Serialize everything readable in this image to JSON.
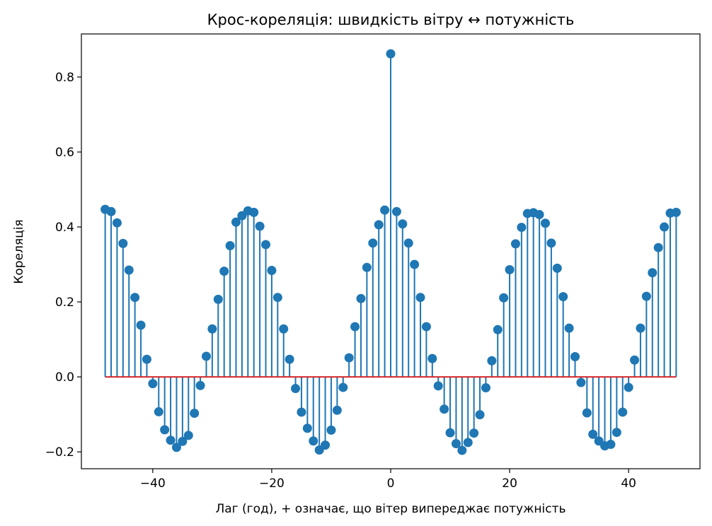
{
  "chart_data": {
    "type": "stem",
    "title": "Крос-кореляція: швидкість вітру ↔ потужність",
    "xlabel": "Лаг (год), + означає, що вітер випереджає потужність",
    "ylabel": "Кореляція",
    "xlim": [
      -52,
      52
    ],
    "ylim": [
      -0.245,
      0.915
    ],
    "xticks": [
      -40,
      -20,
      0,
      20,
      40
    ],
    "xtick_labels": [
      "−40",
      "−20",
      "0",
      "20",
      "40"
    ],
    "yticks": [
      -0.2,
      0.0,
      0.2,
      0.4,
      0.6,
      0.8
    ],
    "ytick_labels": [
      "−0.2",
      "0.0",
      "0.2",
      "0.4",
      "0.6",
      "0.8"
    ],
    "grid": false,
    "baseline": 0.0,
    "colors": {
      "stem": "#1f77b4",
      "marker": "#1f77b4",
      "baseline": "#d62728"
    },
    "x": [
      -48,
      -47,
      -46,
      -45,
      -44,
      -43,
      -42,
      -41,
      -40,
      -39,
      -38,
      -37,
      -36,
      -35,
      -34,
      -33,
      -32,
      -31,
      -30,
      -29,
      -28,
      -27,
      -26,
      -25,
      -24,
      -23,
      -22,
      -21,
      -20,
      -19,
      -18,
      -17,
      -16,
      -15,
      -14,
      -13,
      -12,
      -11,
      -10,
      -9,
      -8,
      -7,
      -6,
      -5,
      -4,
      -3,
      -2,
      -1,
      0,
      1,
      2,
      3,
      4,
      5,
      6,
      7,
      8,
      9,
      10,
      11,
      12,
      13,
      14,
      15,
      16,
      17,
      18,
      19,
      20,
      21,
      22,
      23,
      24,
      25,
      26,
      27,
      28,
      29,
      30,
      31,
      32,
      33,
      34,
      35,
      36,
      37,
      38,
      39,
      40,
      41,
      42,
      43,
      44,
      45,
      46,
      47,
      48
    ],
    "y": [
      0.447,
      0.441,
      0.411,
      0.356,
      0.285,
      0.212,
      0.138,
      0.047,
      -0.018,
      -0.093,
      -0.141,
      -0.169,
      -0.188,
      -0.172,
      -0.156,
      -0.097,
      -0.023,
      0.055,
      0.128,
      0.207,
      0.282,
      0.35,
      0.413,
      0.43,
      0.443,
      0.439,
      0.402,
      0.353,
      0.284,
      0.212,
      0.128,
      0.047,
      -0.031,
      -0.094,
      -0.137,
      -0.171,
      -0.195,
      -0.182,
      -0.142,
      -0.089,
      -0.028,
      0.051,
      0.134,
      0.209,
      0.292,
      0.357,
      0.406,
      0.445,
      0.862,
      0.441,
      0.408,
      0.357,
      0.3,
      0.212,
      0.134,
      0.049,
      -0.024,
      -0.086,
      -0.149,
      -0.178,
      -0.196,
      -0.175,
      -0.15,
      -0.101,
      -0.029,
      0.043,
      0.126,
      0.211,
      0.286,
      0.355,
      0.399,
      0.436,
      0.438,
      0.433,
      0.41,
      0.357,
      0.29,
      0.214,
      0.13,
      0.054,
      -0.015,
      -0.096,
      -0.153,
      -0.171,
      -0.184,
      -0.18,
      -0.148,
      -0.094,
      -0.028,
      0.045,
      0.13,
      0.215,
      0.278,
      0.345,
      0.4,
      0.437,
      0.439
    ]
  }
}
